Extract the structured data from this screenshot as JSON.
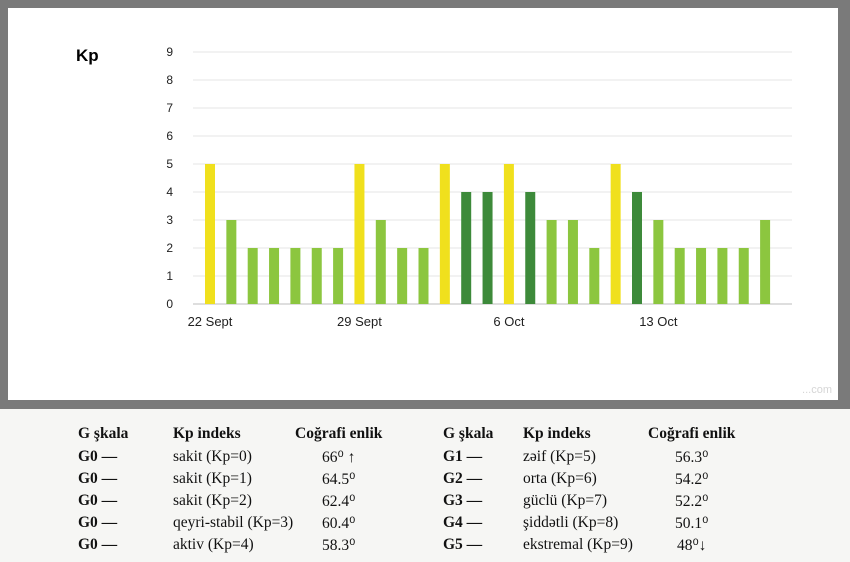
{
  "chart_data": {
    "type": "bar",
    "ylabel": "Kp",
    "ylim": [
      0,
      9
    ],
    "yticks": [
      0,
      1,
      2,
      3,
      4,
      5,
      6,
      7,
      8,
      9
    ],
    "x_tick_labels": [
      {
        "label": "22 Sept",
        "index": 0
      },
      {
        "label": "29 Sept",
        "index": 7
      },
      {
        "label": "6 Oct",
        "index": 14
      },
      {
        "label": "13 Oct",
        "index": 21
      }
    ],
    "values": [
      5,
      3,
      2,
      2,
      2,
      2,
      2,
      5,
      3,
      2,
      2,
      5,
      4,
      4,
      5,
      4,
      3,
      3,
      2,
      5,
      4,
      3,
      2,
      2,
      2,
      2,
      3
    ],
    "color_map": {
      "2": "#8cc63f",
      "3": "#8cc63f",
      "4": "#3d8a3a",
      "5": "#f0e01d"
    },
    "grid": true,
    "watermark": "...com"
  },
  "legend": {
    "left": {
      "headers": [
        "G şkala",
        "Kp indeks",
        "Coğrafi enlik"
      ],
      "rows": [
        {
          "g": "G0 —",
          "kp": "sakit (Kp=0)",
          "lat": "66⁰ ↑"
        },
        {
          "g": "G0 —",
          "kp": "sakit (Kp=1)",
          "lat": "64.5⁰"
        },
        {
          "g": "G0 —",
          "kp": "sakit (Kp=2)",
          "lat": "62.4⁰"
        },
        {
          "g": "G0 —",
          "kp": "qeyri-stabil (Kp=3)",
          "lat": "60.4⁰"
        },
        {
          "g": "G0 —",
          "kp": "aktiv (Kp=4)",
          "lat": "58.3⁰"
        }
      ]
    },
    "right": {
      "headers": [
        "G şkala",
        "Kp indeks",
        "Coğrafi enlik"
      ],
      "rows": [
        {
          "g": "G1 —",
          "kp": "zəif (Kp=5)",
          "lat": "56.3⁰"
        },
        {
          "g": "G2 —",
          "kp": "orta (Kp=6)",
          "lat": "54.2⁰"
        },
        {
          "g": "G3 —",
          "kp": "güclü (Kp=7)",
          "lat": "52.2⁰"
        },
        {
          "g": "G4 —",
          "kp": "şiddətli (Kp=8)",
          "lat": "50.1⁰"
        },
        {
          "g": "G5 —",
          "kp": "ekstremal (Kp=9)",
          "lat": "48⁰↓"
        }
      ]
    }
  }
}
